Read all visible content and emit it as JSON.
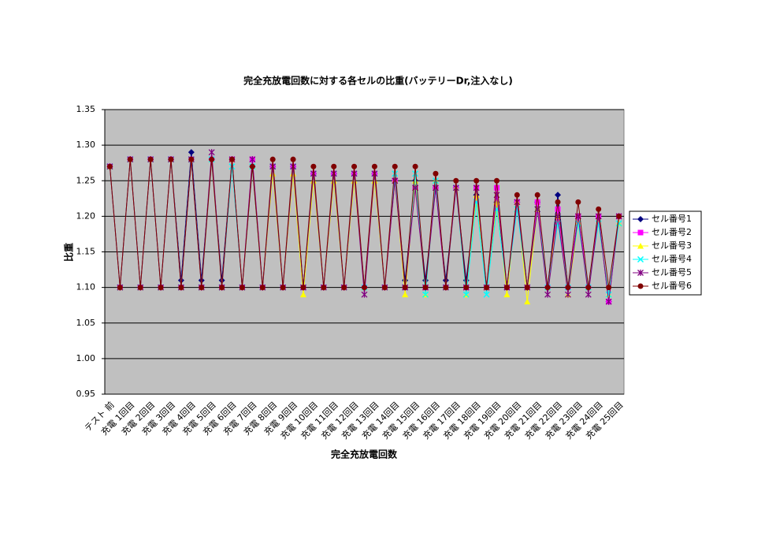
{
  "chart_data": {
    "type": "line",
    "title": "完全充放電回数に対する各セルの比重(バッテリーDr,注入なし)",
    "x_label": "完全充放電回数",
    "y_label": "比重",
    "categories": [
      "テスト 前",
      null,
      "充電 1回目",
      null,
      "充電 2回目",
      null,
      "充電 3回目",
      null,
      "充電 4回目",
      null,
      "充電 5回目",
      null,
      "充電 6回目",
      null,
      "充電 7回目",
      null,
      "充電 8回目",
      null,
      "充電 9回目",
      null,
      "充電 10回目",
      null,
      "充電 11回目",
      null,
      "充電 12回目",
      null,
      "充電 13回目",
      null,
      "充電 14回目",
      null,
      "充電 15回目",
      null,
      "充電 16回目",
      null,
      "充電 17回目",
      null,
      "充電 18回目",
      null,
      "充電 19回目",
      null,
      "充電 20回目",
      null,
      "充電 21回目",
      null,
      "充電 22回目",
      null,
      "充電 23回目",
      null,
      "充電 24回目",
      null,
      "充電 25回目"
    ],
    "ylim": [
      0.95,
      1.35
    ],
    "yticks": [
      0.95,
      {
        "value": 1,
        "label": "1.00"
      },
      1.05,
      {
        "value": 1.1,
        "label": "1.10"
      },
      1.15,
      {
        "value": 1.2,
        "label": "1.20"
      },
      1.25,
      {
        "value": 1.3,
        "label": "1.30"
      },
      1.35
    ],
    "grid": true,
    "legend": "right",
    "plot_background": "#c0c0c0",
    "series": [
      {
        "name": "セル番号1",
        "color": "#000080",
        "marker": "diamond",
        "values": [
          1.27,
          1.1,
          1.28,
          1.1,
          1.28,
          1.1,
          1.28,
          1.11,
          1.29,
          1.11,
          1.28,
          1.11,
          1.28,
          1.1,
          1.27,
          1.1,
          1.27,
          1.1,
          1.27,
          1.1,
          1.26,
          1.1,
          1.26,
          1.1,
          1.26,
          1.1,
          1.26,
          1.1,
          1.25,
          1.11,
          1.25,
          1.11,
          1.24,
          1.11,
          1.24,
          1.11,
          1.23,
          1.1,
          1.22,
          1.1,
          1.22,
          1.1,
          1.22,
          1.1,
          1.23,
          1.1,
          1.2,
          1.1,
          1.2,
          1.08,
          1.2
        ]
      },
      {
        "name": "セル番号2",
        "color": "#ff00ff",
        "marker": "square",
        "values": [
          1.27,
          1.1,
          1.28,
          1.1,
          1.28,
          1.1,
          1.28,
          1.1,
          1.28,
          1.1,
          1.28,
          1.1,
          1.28,
          1.1,
          1.28,
          1.1,
          1.27,
          1.1,
          1.27,
          1.1,
          1.26,
          1.1,
          1.26,
          1.1,
          1.26,
          1.1,
          1.26,
          1.1,
          1.25,
          1.1,
          1.24,
          1.1,
          1.24,
          1.1,
          1.24,
          1.1,
          1.24,
          1.1,
          1.24,
          1.1,
          1.22,
          1.1,
          1.22,
          1.1,
          1.21,
          1.1,
          1.2,
          1.1,
          1.2,
          1.08,
          1.2
        ]
      },
      {
        "name": "セル番号3",
        "color": "#ffff00",
        "marker": "triangle",
        "values": [
          1.27,
          1.1,
          1.28,
          1.1,
          1.28,
          1.1,
          1.28,
          1.1,
          1.28,
          1.1,
          1.28,
          1.1,
          1.28,
          1.1,
          1.27,
          1.1,
          1.26,
          1.1,
          1.26,
          1.09,
          1.25,
          1.1,
          1.25,
          1.1,
          1.25,
          1.1,
          1.25,
          1.1,
          1.25,
          1.09,
          1.25,
          1.09,
          1.25,
          1.1,
          1.24,
          1.09,
          1.23,
          1.1,
          1.22,
          1.09,
          1.22,
          1.08,
          1.21,
          1.1,
          1.2,
          1.09,
          1.19,
          1.1,
          1.19,
          1.09,
          1.19
        ]
      },
      {
        "name": "セル番号4",
        "color": "#00ffff",
        "marker": "x",
        "values": [
          1.27,
          1.1,
          1.28,
          1.1,
          1.28,
          1.1,
          1.28,
          1.1,
          1.28,
          1.1,
          1.28,
          1.1,
          1.27,
          1.1,
          1.27,
          1.1,
          1.27,
          1.1,
          1.27,
          1.1,
          1.26,
          1.1,
          1.26,
          1.1,
          1.26,
          1.1,
          1.26,
          1.1,
          1.26,
          1.1,
          1.26,
          1.09,
          1.25,
          1.1,
          1.24,
          1.09,
          1.22,
          1.09,
          1.21,
          1.1,
          1.21,
          1.1,
          1.21,
          1.1,
          1.19,
          1.1,
          1.19,
          1.1,
          1.19,
          1.09,
          1.19
        ]
      },
      {
        "name": "セル番号5",
        "color": "#800080",
        "marker": "star",
        "values": [
          1.27,
          1.1,
          1.28,
          1.1,
          1.28,
          1.1,
          1.28,
          1.1,
          1.28,
          1.1,
          1.29,
          1.1,
          1.28,
          1.1,
          1.28,
          1.1,
          1.27,
          1.1,
          1.27,
          1.1,
          1.26,
          1.1,
          1.26,
          1.1,
          1.26,
          1.09,
          1.26,
          1.1,
          1.25,
          1.1,
          1.24,
          1.1,
          1.24,
          1.1,
          1.24,
          1.1,
          1.24,
          1.1,
          1.23,
          1.1,
          1.22,
          1.1,
          1.21,
          1.09,
          1.2,
          1.09,
          1.2,
          1.09,
          1.2,
          1.08,
          1.2
        ]
      },
      {
        "name": "セル番号6",
        "color": "#800000",
        "marker": "circle",
        "values": [
          1.27,
          1.1,
          1.28,
          1.1,
          1.28,
          1.1,
          1.28,
          1.1,
          1.28,
          1.1,
          1.28,
          1.1,
          1.28,
          1.1,
          1.27,
          1.1,
          1.28,
          1.1,
          1.28,
          1.1,
          1.27,
          1.1,
          1.27,
          1.1,
          1.27,
          1.1,
          1.27,
          1.1,
          1.27,
          1.1,
          1.27,
          1.1,
          1.26,
          1.1,
          1.25,
          1.1,
          1.25,
          1.1,
          1.25,
          1.1,
          1.23,
          1.1,
          1.23,
          1.1,
          1.22,
          1.1,
          1.22,
          1.1,
          1.21,
          1.1,
          1.2
        ]
      }
    ]
  }
}
